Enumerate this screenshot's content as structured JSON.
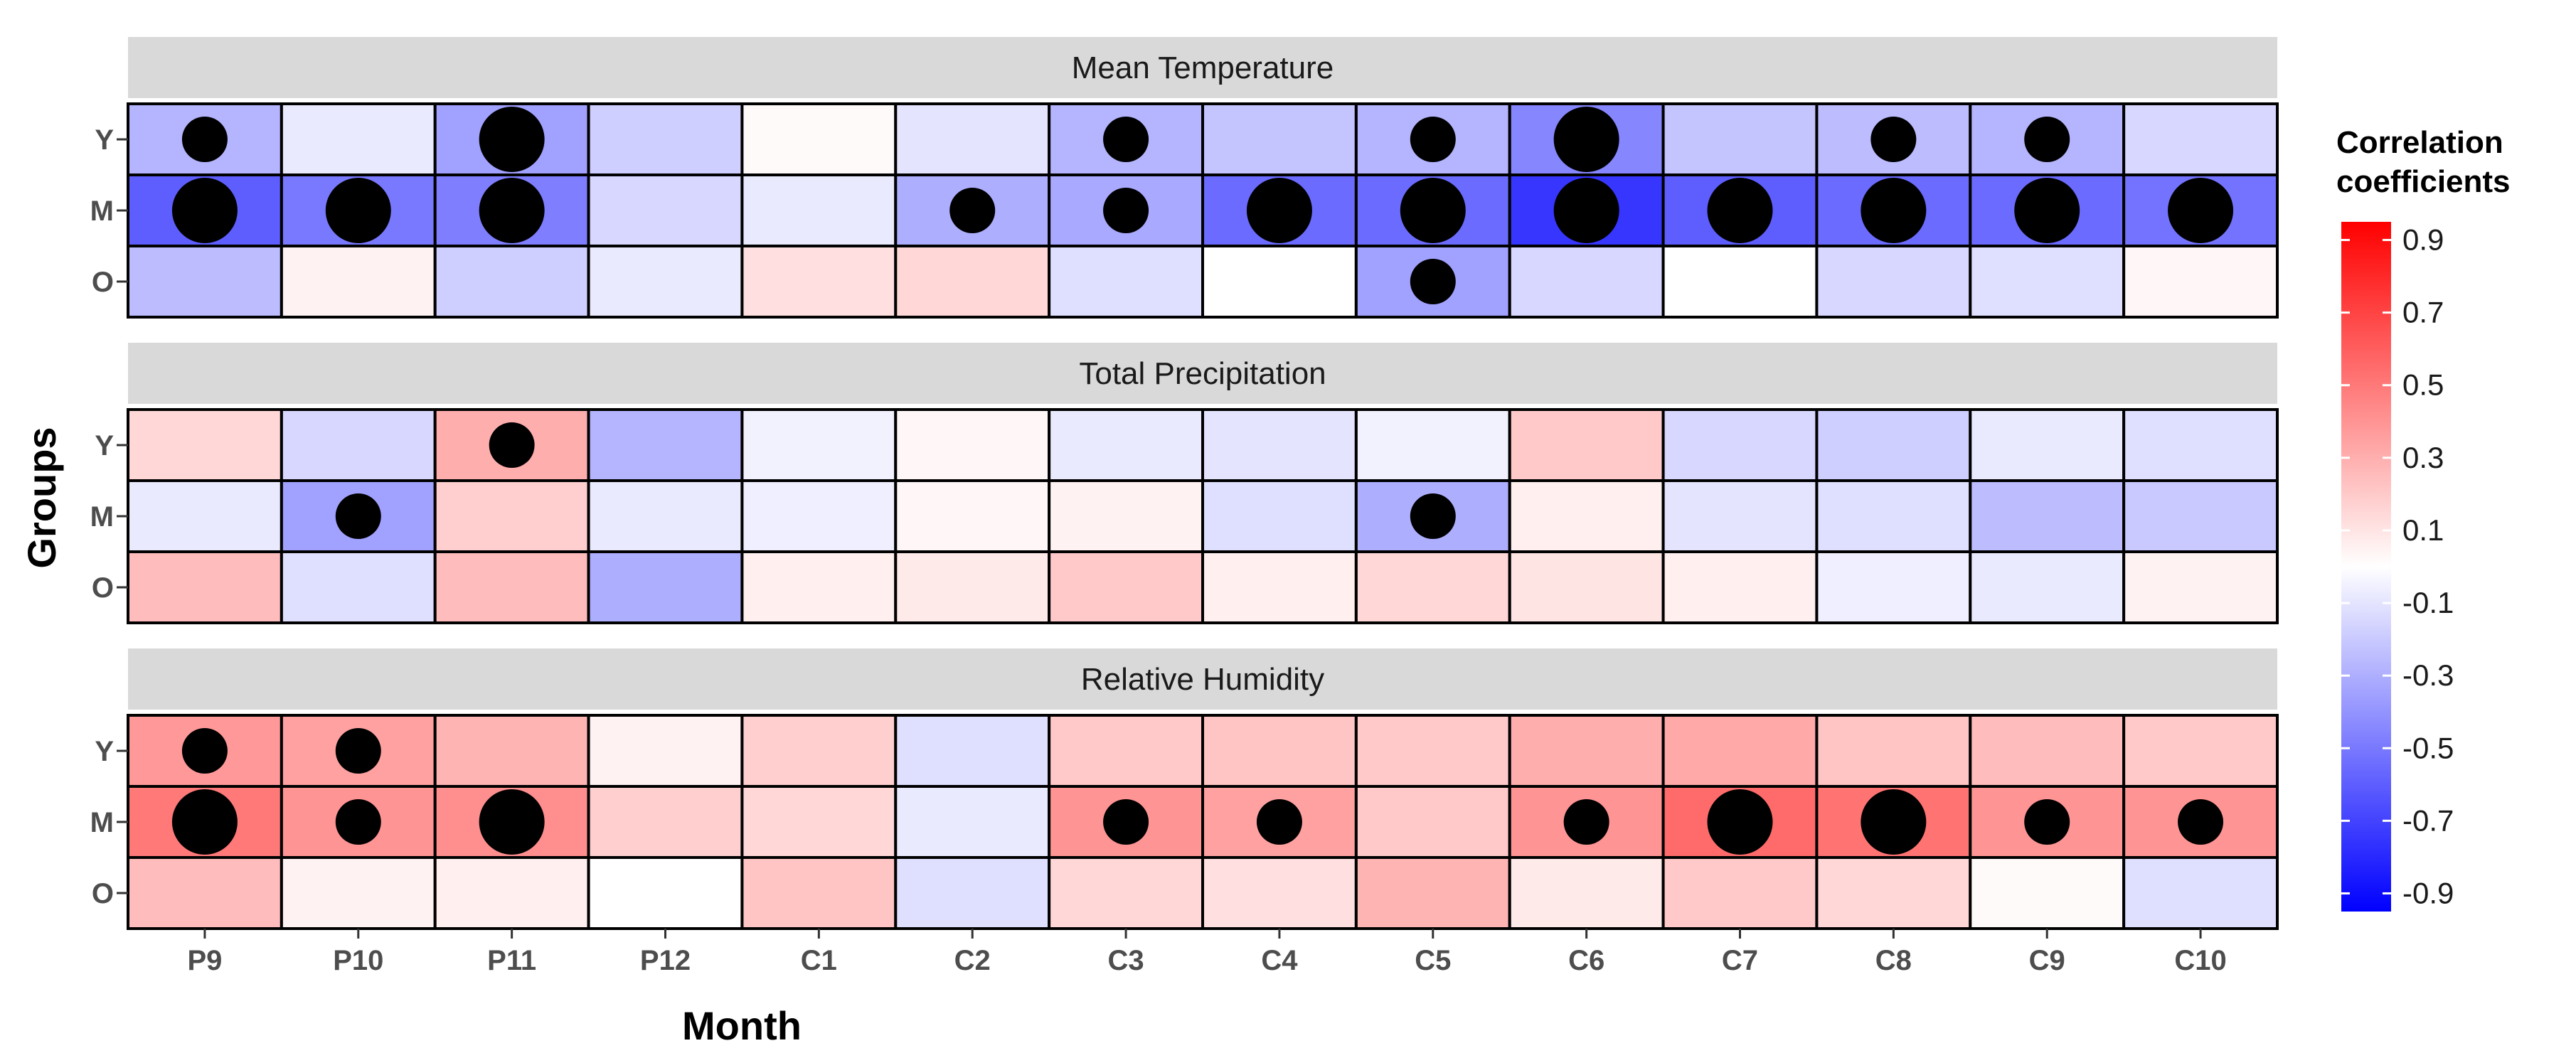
{
  "chart_data": {
    "type": "heatmap",
    "xlabel": "Month",
    "ylabel": "Groups",
    "months": [
      "P9",
      "P10",
      "P11",
      "P12",
      "C1",
      "C2",
      "C3",
      "C4",
      "C5",
      "C6",
      "C7",
      "C8",
      "C9",
      "C10"
    ],
    "groups": [
      "Y",
      "M",
      "O"
    ],
    "legend": {
      "title_line1": "Correlation",
      "title_line2": "coefficients",
      "ticks": [
        0.9,
        0.7,
        0.5,
        0.3,
        0.1,
        -0.1,
        -0.3,
        -0.5,
        -0.7,
        -0.9
      ],
      "tick_labels": [
        "0.9",
        "0.7",
        "0.5",
        "0.3",
        "0.1",
        "-0.1",
        "-0.3",
        "-0.5",
        "-0.7",
        "-0.9"
      ],
      "range": [
        -0.95,
        0.95
      ],
      "placement": "right",
      "colors": {
        "low": "#0000ff",
        "mid": "#ffffff",
        "high": "#ff0000"
      }
    },
    "panels": [
      {
        "name": "Mean Temperature",
        "values": [
          [
            -0.28,
            -0.08,
            -0.35,
            -0.18,
            0.02,
            -0.1,
            -0.28,
            -0.22,
            -0.28,
            -0.45,
            -0.22,
            -0.25,
            -0.28,
            -0.15
          ],
          [
            -0.6,
            -0.5,
            -0.48,
            -0.15,
            -0.08,
            -0.3,
            -0.32,
            -0.55,
            -0.55,
            -0.75,
            -0.6,
            -0.55,
            -0.55,
            -0.52
          ],
          [
            -0.25,
            0.05,
            -0.18,
            -0.08,
            0.12,
            0.15,
            -0.12,
            0.0,
            -0.35,
            -0.15,
            0.0,
            -0.15,
            -0.12,
            0.03
          ]
        ],
        "dots": [
          [
            2,
            0,
            3,
            0,
            0,
            0,
            2,
            0,
            2,
            3,
            0,
            2,
            2,
            0
          ],
          [
            3,
            3,
            3,
            0,
            0,
            2,
            2,
            3,
            3,
            3,
            3,
            3,
            3,
            3
          ],
          [
            0,
            0,
            0,
            0,
            0,
            0,
            0,
            0,
            2,
            0,
            0,
            0,
            0,
            0
          ]
        ]
      },
      {
        "name": "Total Precipitation",
        "values": [
          [
            0.15,
            -0.15,
            0.3,
            -0.28,
            -0.05,
            0.03,
            -0.08,
            -0.1,
            -0.05,
            0.2,
            -0.15,
            -0.18,
            -0.08,
            -0.12
          ],
          [
            -0.08,
            -0.35,
            0.18,
            -0.08,
            -0.06,
            0.03,
            0.05,
            -0.12,
            -0.3,
            0.06,
            -0.1,
            -0.12,
            -0.25,
            -0.2
          ],
          [
            0.25,
            -0.12,
            0.25,
            -0.3,
            0.06,
            0.08,
            0.2,
            0.06,
            0.15,
            0.1,
            0.06,
            -0.06,
            -0.08,
            0.05
          ]
        ],
        "dots": [
          [
            0,
            0,
            2,
            0,
            0,
            0,
            0,
            0,
            0,
            0,
            0,
            0,
            0,
            0
          ],
          [
            0,
            2,
            0,
            0,
            0,
            0,
            0,
            0,
            2,
            0,
            0,
            0,
            0,
            0
          ],
          [
            0,
            0,
            0,
            0,
            0,
            0,
            0,
            0,
            0,
            0,
            0,
            0,
            0,
            0
          ]
        ]
      },
      {
        "name": "Relative Humidity",
        "values": [
          [
            0.38,
            0.35,
            0.28,
            0.05,
            0.18,
            -0.12,
            0.2,
            0.22,
            0.2,
            0.3,
            0.32,
            0.22,
            0.25,
            0.2
          ],
          [
            0.5,
            0.4,
            0.42,
            0.18,
            0.15,
            -0.08,
            0.4,
            0.35,
            0.2,
            0.4,
            0.55,
            0.52,
            0.4,
            0.4
          ],
          [
            0.25,
            0.05,
            0.06,
            0.0,
            0.22,
            -0.12,
            0.15,
            0.12,
            0.28,
            0.08,
            0.2,
            0.15,
            0.02,
            -0.12
          ]
        ],
        "dots": [
          [
            2,
            2,
            0,
            0,
            0,
            0,
            0,
            0,
            0,
            0,
            0,
            0,
            0,
            0
          ],
          [
            3,
            2,
            3,
            0,
            0,
            0,
            2,
            2,
            0,
            2,
            3,
            3,
            2,
            2
          ],
          [
            0,
            0,
            0,
            0,
            0,
            0,
            0,
            0,
            0,
            0,
            0,
            0,
            0,
            0
          ]
        ]
      }
    ]
  }
}
